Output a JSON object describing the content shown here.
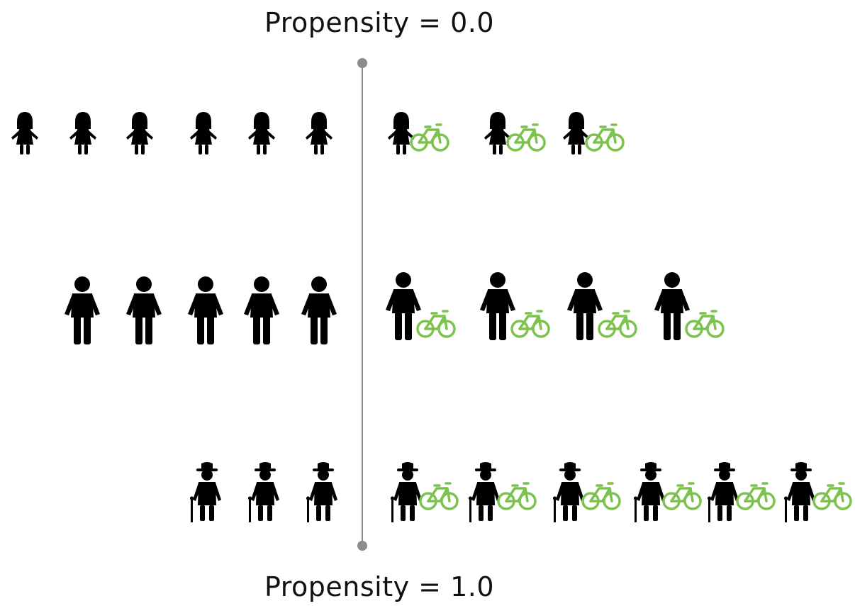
{
  "labels": {
    "top": "Propensity = 0.0",
    "bottom": "Propensity = 1.0"
  },
  "colors": {
    "person": "#000000",
    "bicycle": "#7cc24f",
    "axis": "#8c8c8c"
  },
  "icons": {
    "child": "child-icon",
    "adult": "adult-icon",
    "elder": "elderly-person-icon",
    "bike": "bicycle-icon"
  },
  "groups": [
    {
      "name": "children",
      "icon": "child",
      "without_bike": 6,
      "with_bike": 3
    },
    {
      "name": "adults",
      "icon": "adult",
      "without_bike": 5,
      "with_bike": 4
    },
    {
      "name": "elderly",
      "icon": "elder",
      "without_bike": 3,
      "with_bike": 6
    }
  ]
}
